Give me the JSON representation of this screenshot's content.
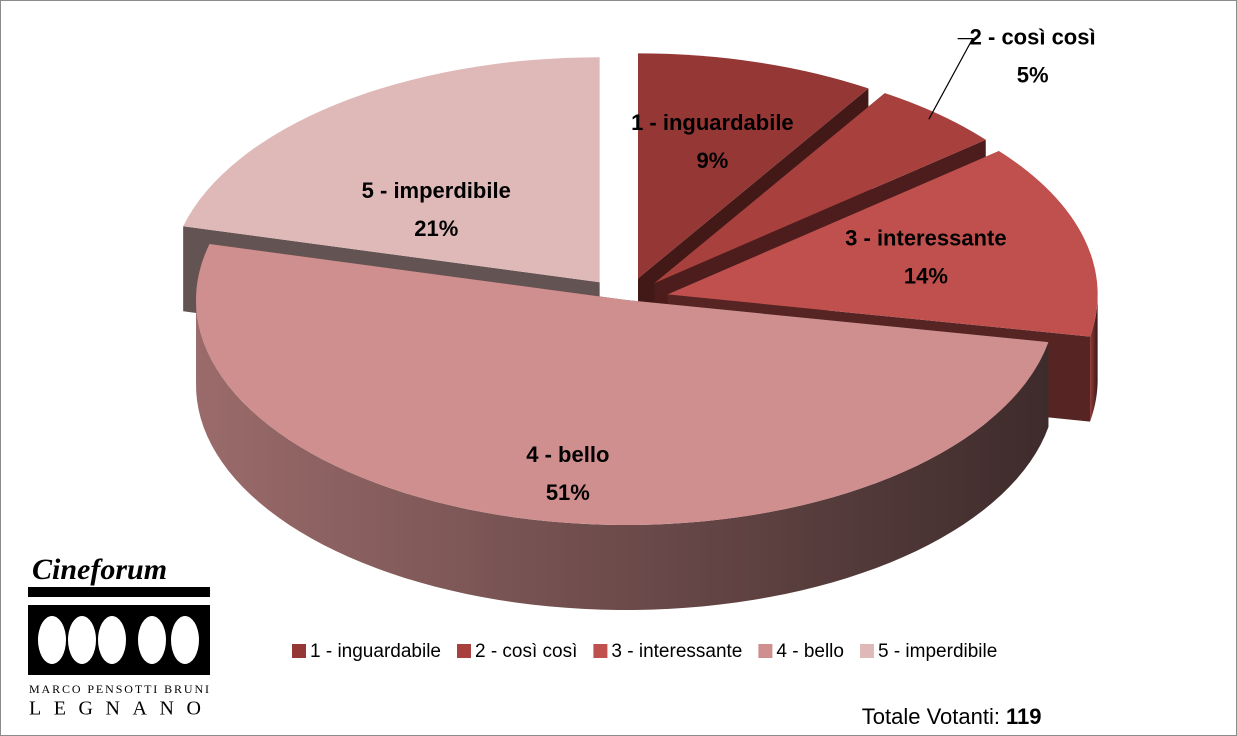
{
  "chart_data": {
    "type": "pie3d",
    "categories": [
      "1 - inguardabile",
      "2 - così così",
      "3 - interessante",
      "4 - bello",
      "5 - imperdibile"
    ],
    "values": [
      9,
      5,
      14,
      51,
      21
    ],
    "value_labels": [
      "9%",
      "5%",
      "14%",
      "51%",
      "21%"
    ],
    "colors": [
      "#953735",
      "#a8403e",
      "#c0504d",
      "#cf8f8e",
      "#dfb9b8"
    ],
    "legend": "bottom"
  },
  "footer": {
    "label": "Totale Votanti:",
    "value": 119
  },
  "logo": {
    "title": "Cineforum",
    "line1": "MARCO PENSOTTI BRUNI",
    "line2": "LEGNANO"
  }
}
